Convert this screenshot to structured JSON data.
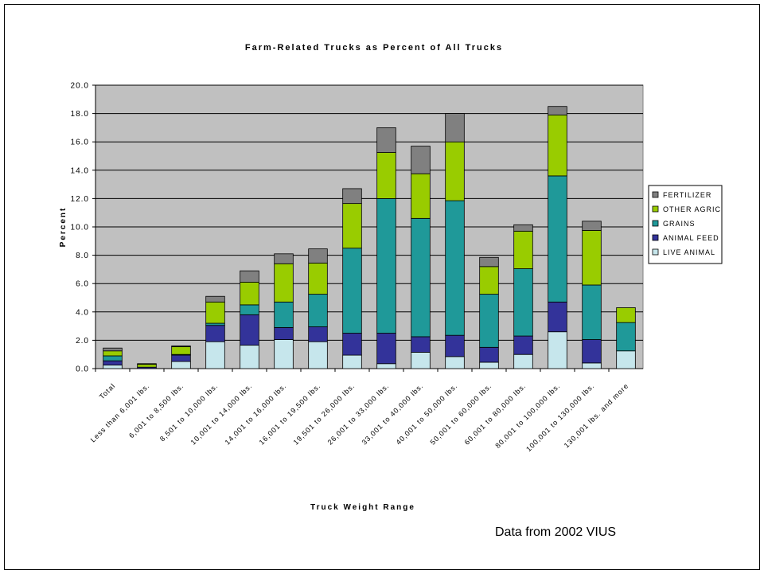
{
  "chart_data": {
    "type": "bar",
    "stacked": true,
    "title": "Farm-Related Trucks as Percent of All Trucks",
    "xlabel": "Truck Weight Range",
    "ylabel": "Percent",
    "ylim": [
      0,
      20
    ],
    "yticks": [
      "0.0",
      "2.0",
      "4.0",
      "6.0",
      "8.0",
      "10.0",
      "12.0",
      "14.0",
      "16.0",
      "18.0",
      "20.0"
    ],
    "grid": true,
    "legend_position": "right",
    "categories": [
      "Total",
      "Less than 6,001 lbs.",
      "6,001 to 8,500 lbs.",
      "8,501 to 10,000 lbs.",
      "10,001 to 14,000 lbs.",
      "14,001 to 16,000 lbs.",
      "16,001 to 19,500 lbs.",
      "19,501 to 26,000 lbs.",
      "26,001 to 33,000 lbs.",
      "33,001 to 40,000 lbs.",
      "40,001 to 50,000 lbs.",
      "50,001 to 60,000 lbs.",
      "60,001 to 80,000 lbs.",
      "80,001 to 100,000 lbs.",
      "100,001 to 130,000 lbs.",
      "130,001 lbs. and more"
    ],
    "series": [
      {
        "name": "LIVE ANIMAL",
        "color": "#c6e6ec",
        "values": [
          0.25,
          0.0,
          0.5,
          1.9,
          1.65,
          2.05,
          1.9,
          0.95,
          0.35,
          1.15,
          0.85,
          0.45,
          1.0,
          2.6,
          0.4,
          1.25
        ]
      },
      {
        "name": "ANIMAL FEED",
        "color": "#33339a",
        "values": [
          0.3,
          0.1,
          0.45,
          1.15,
          2.15,
          0.85,
          1.05,
          1.55,
          2.15,
          1.1,
          1.5,
          1.05,
          1.3,
          2.1,
          1.65,
          0.0
        ]
      },
      {
        "name": "GRAINS",
        "color": "#1f9999",
        "values": [
          0.35,
          0.0,
          0.05,
          0.15,
          0.7,
          1.8,
          2.3,
          6.0,
          9.5,
          8.35,
          9.5,
          3.75,
          4.75,
          8.9,
          3.85,
          2.0
        ]
      },
      {
        "name": "OTHER AGRIC",
        "color": "#99cc00",
        "values": [
          0.35,
          0.2,
          0.55,
          1.5,
          1.6,
          2.7,
          2.2,
          3.15,
          3.25,
          3.15,
          4.15,
          1.95,
          2.65,
          4.3,
          3.85,
          1.05
        ]
      },
      {
        "name": "FERTILIZER",
        "color": "#808080",
        "values": [
          0.2,
          0.05,
          0.05,
          0.4,
          0.8,
          0.7,
          1.0,
          1.05,
          1.75,
          1.95,
          2.0,
          0.65,
          0.45,
          0.6,
          0.65,
          0.0
        ]
      }
    ],
    "legend_order": [
      "FERTILIZER",
      "OTHER AGRIC",
      "GRAINS",
      "ANIMAL FEED",
      "LIVE ANIMAL"
    ],
    "plot_bg": "#c0c0c0"
  },
  "source_note": "Data from 2002 VIUS"
}
